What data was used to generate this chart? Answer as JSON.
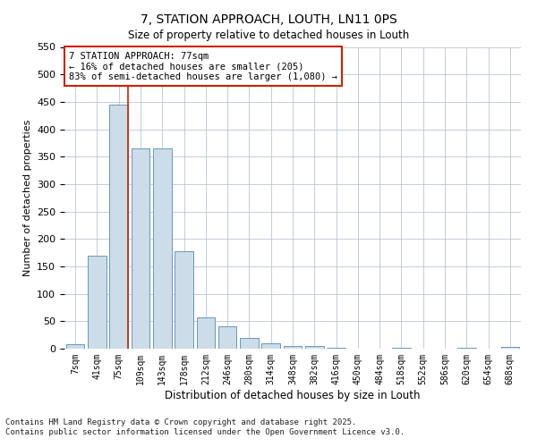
{
  "title1": "7, STATION APPROACH, LOUTH, LN11 0PS",
  "title2": "Size of property relative to detached houses in Louth",
  "xlabel": "Distribution of detached houses by size in Louth",
  "ylabel": "Number of detached properties",
  "categories": [
    "7sqm",
    "41sqm",
    "75sqm",
    "109sqm",
    "143sqm",
    "178sqm",
    "212sqm",
    "246sqm",
    "280sqm",
    "314sqm",
    "348sqm",
    "382sqm",
    "416sqm",
    "450sqm",
    "484sqm",
    "518sqm",
    "552sqm",
    "586sqm",
    "620sqm",
    "654sqm",
    "688sqm"
  ],
  "values": [
    8,
    170,
    445,
    365,
    365,
    178,
    57,
    40,
    20,
    10,
    5,
    5,
    2,
    0,
    0,
    2,
    0,
    0,
    2,
    0,
    4
  ],
  "bar_color": "#ccdce8",
  "bar_edge_color": "#6699bb",
  "vline_x_index": 2,
  "vline_color": "#cc2200",
  "annotation_text": "7 STATION APPROACH: 77sqm\n← 16% of detached houses are smaller (205)\n83% of semi-detached houses are larger (1,080) →",
  "annotation_box_color": "#cc2200",
  "ylim": [
    0,
    550
  ],
  "yticks": [
    0,
    50,
    100,
    150,
    200,
    250,
    300,
    350,
    400,
    450,
    500,
    550
  ],
  "footnote1": "Contains HM Land Registry data © Crown copyright and database right 2025.",
  "footnote2": "Contains public sector information licensed under the Open Government Licence v3.0.",
  "background_color": "#ffffff",
  "plot_background": "#ffffff",
  "grid_color": "#aabbcc"
}
